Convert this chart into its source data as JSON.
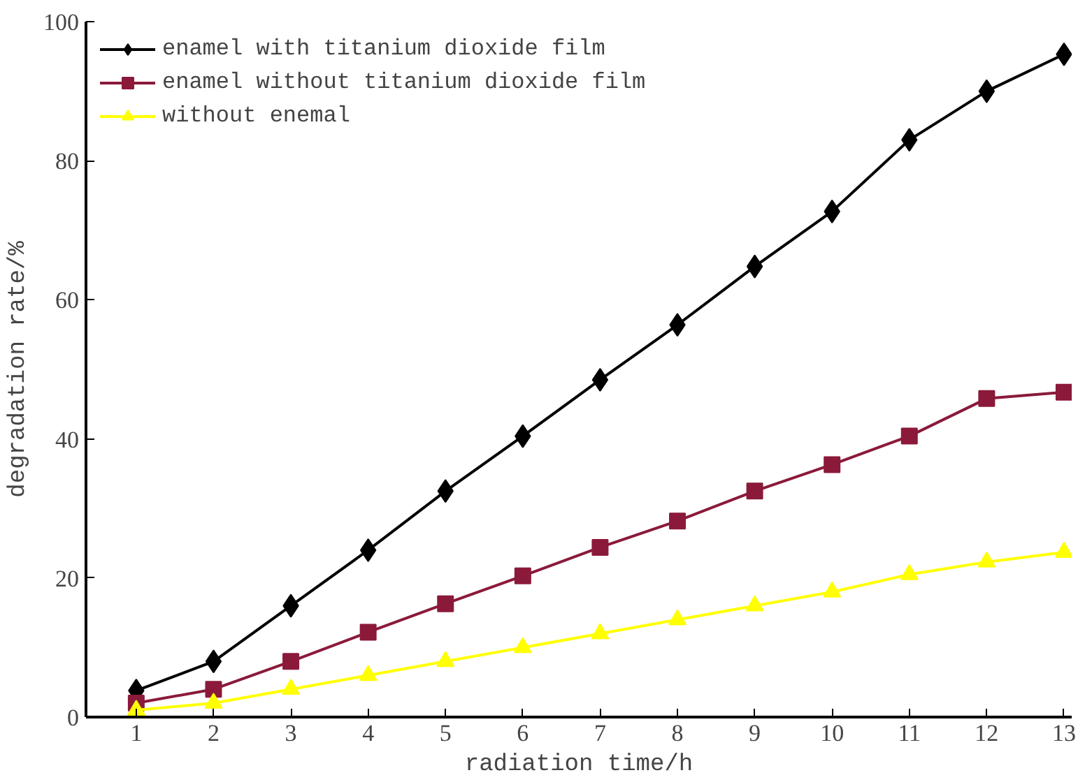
{
  "chart_data": {
    "type": "line",
    "xlabel": "radiation time/h",
    "ylabel": "degradation rate/%",
    "x": [
      1,
      2,
      3,
      4,
      5,
      6,
      7,
      8,
      9,
      10,
      11,
      12,
      13
    ],
    "xlim": [
      0.35,
      13.1
    ],
    "xticks": [
      1,
      2,
      3,
      4,
      5,
      6,
      7,
      8,
      9,
      10,
      11,
      12,
      13
    ],
    "ylim": [
      0,
      100
    ],
    "yticks": [
      0,
      20,
      40,
      60,
      80,
      100
    ],
    "grid": false,
    "legend": "top left",
    "line_style": "solid",
    "series": [
      {
        "name": "enamel with titanium dioxide film",
        "color": "#000000",
        "marker": "diamond",
        "values": [
          3.8,
          8,
          16,
          24,
          32.5,
          40.4,
          48.5,
          56.4,
          64.8,
          72.7,
          83,
          90,
          95.3
        ]
      },
      {
        "name": "enamel without titanium dioxide film",
        "color": "#8b1a3a",
        "marker": "square",
        "values": [
          2,
          4,
          8,
          12.2,
          16.3,
          20.3,
          24.4,
          28.2,
          32.5,
          36.3,
          40.4,
          45.8,
          46.7
        ]
      },
      {
        "name": "without enemal",
        "color": "#ffff00",
        "marker": "triangle",
        "values": [
          1,
          2,
          4,
          6,
          8,
          10,
          12,
          14,
          16,
          18,
          20.5,
          22.3,
          23.7
        ]
      }
    ]
  }
}
